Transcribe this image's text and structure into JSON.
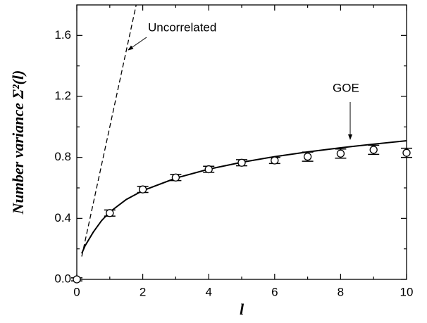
{
  "chart_data": {
    "type": "line",
    "xlabel": "l",
    "ylabel": "Number variance Σ²(l)",
    "xlim": [
      0,
      10
    ],
    "ylim": [
      0,
      1.8
    ],
    "xticks": [
      0,
      2,
      4,
      6,
      8,
      10
    ],
    "yticks": [
      {
        "value": 0,
        "label": "0.0"
      },
      {
        "value": 0.4,
        "label": "0.4"
      },
      {
        "value": 0.8,
        "label": "0.8"
      },
      {
        "value": 1.2,
        "label": "1.2"
      },
      {
        "value": 1.6,
        "label": "1.6"
      }
    ],
    "xminorticks": [
      1,
      3,
      5,
      7,
      9
    ],
    "yminorticks": [
      0.2,
      0.6,
      1.0,
      1.4
    ],
    "series": [
      {
        "name": "GOE",
        "color": "#000000",
        "style": "solid",
        "x": [
          0.15,
          0.25,
          0.5,
          0.75,
          1,
          1.5,
          2,
          3,
          4,
          5,
          6,
          7,
          8,
          9,
          10
        ],
        "values": [
          0.17,
          0.22,
          0.31,
          0.385,
          0.442,
          0.524,
          0.582,
          0.664,
          0.723,
          0.768,
          0.805,
          0.836,
          0.863,
          0.887,
          0.909
        ]
      },
      {
        "name": "Uncorrelated",
        "color": "#000000",
        "style": "dashed",
        "x": [
          0.15,
          1.8
        ],
        "values": [
          0.15,
          1.8
        ]
      },
      {
        "type": "errorbar",
        "color": "#000000",
        "x": [
          0,
          1,
          2,
          3,
          4,
          5,
          6,
          7,
          8,
          9,
          10
        ],
        "values": [
          0,
          0.435,
          0.59,
          0.668,
          0.722,
          0.765,
          0.78,
          0.805,
          0.825,
          0.85,
          0.83
        ],
        "errors": [
          0.01,
          0.02,
          0.02,
          0.02,
          0.02,
          0.02,
          0.02,
          0.03,
          0.03,
          0.03,
          0.03
        ]
      }
    ]
  }
}
